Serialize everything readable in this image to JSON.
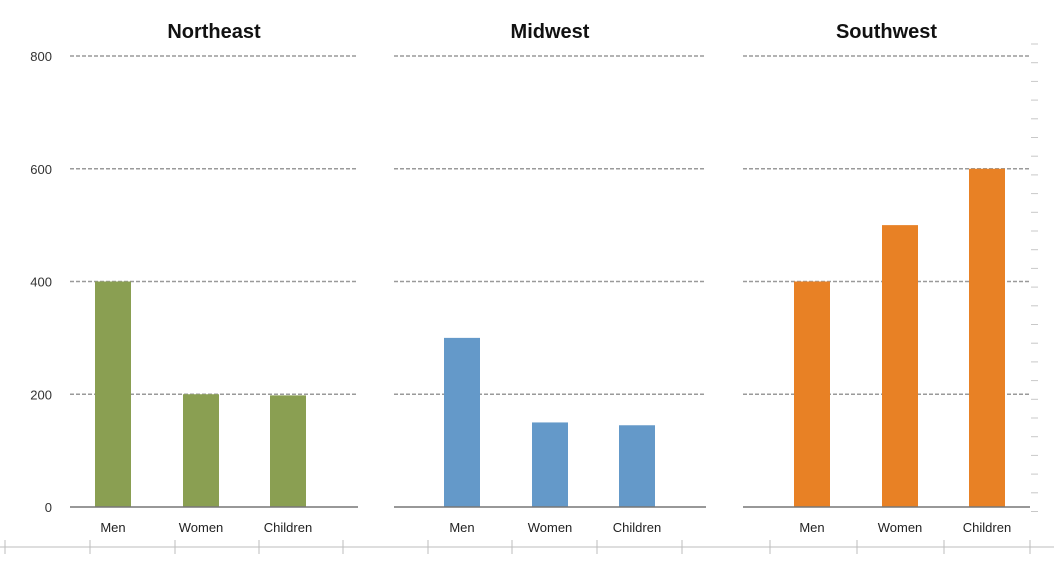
{
  "chart_data": {
    "type": "bar",
    "layout": "small-multiples",
    "categories": [
      "Men",
      "Women",
      "Children"
    ],
    "ylim": [
      0,
      800
    ],
    "yticks": [
      0,
      200,
      400,
      600,
      800
    ],
    "ytick_labels": [
      "0",
      "200",
      "400",
      "600",
      "800"
    ],
    "grid": true,
    "legend": "none",
    "xlabel": "",
    "ylabel": "",
    "panels": [
      {
        "title": "Northeast",
        "color": "#8a9f52",
        "series": [
          {
            "name": "Northeast",
            "values": [
              400,
              200,
              198
            ]
          }
        ]
      },
      {
        "title": "Midwest",
        "color": "#6499c9",
        "series": [
          {
            "name": "Midwest",
            "values": [
              300,
              150,
              145
            ]
          }
        ]
      },
      {
        "title": "Southwest",
        "color": "#e88125",
        "series": [
          {
            "name": "Southwest",
            "values": [
              400,
              500,
              600
            ]
          }
        ]
      }
    ]
  }
}
